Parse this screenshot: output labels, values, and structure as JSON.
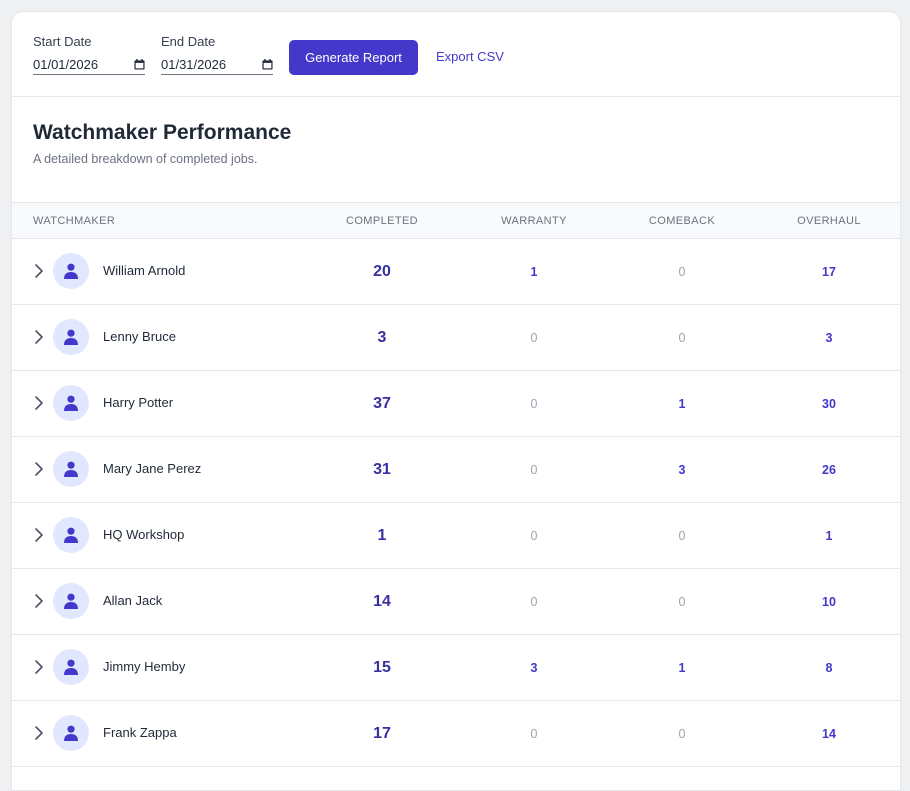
{
  "filters": {
    "start_label": "Start Date",
    "start_value": "01/01/2026",
    "end_label": "End Date",
    "end_value": "01/31/2026",
    "generate_label": "Generate Report",
    "export_label": "Export CSV"
  },
  "header": {
    "title": "Watchmaker Performance",
    "subtitle": "A detailed breakdown of completed jobs."
  },
  "columns": {
    "watchmaker": "WATCHMAKER",
    "completed": "COMPLETED",
    "warranty": "WARRANTY",
    "comeback": "COMEBACK",
    "overhaul": "OVERHAUL"
  },
  "rows": [
    {
      "name": "William Arnold",
      "completed": "20",
      "warranty": "1",
      "comeback": "0",
      "overhaul": "17"
    },
    {
      "name": "Lenny Bruce",
      "completed": "3",
      "warranty": "0",
      "comeback": "0",
      "overhaul": "3"
    },
    {
      "name": "Harry Potter",
      "completed": "37",
      "warranty": "0",
      "comeback": "1",
      "overhaul": "30"
    },
    {
      "name": "Mary Jane Perez",
      "completed": "31",
      "warranty": "0",
      "comeback": "3",
      "overhaul": "26"
    },
    {
      "name": "HQ Workshop",
      "completed": "1",
      "warranty": "0",
      "comeback": "0",
      "overhaul": "1"
    },
    {
      "name": "Allan Jack",
      "completed": "14",
      "warranty": "0",
      "comeback": "0",
      "overhaul": "10"
    },
    {
      "name": "Jimmy Hemby",
      "completed": "15",
      "warranty": "3",
      "comeback": "1",
      "overhaul": "8"
    },
    {
      "name": "Frank Zappa",
      "completed": "17",
      "warranty": "0",
      "comeback": "0",
      "overhaul": "14"
    }
  ],
  "colors": {
    "accent": "#4338ca",
    "avatar_bg": "#e0e7ff",
    "muted": "#9ca3af"
  },
  "icons": {
    "expand": "chevron-right-icon",
    "avatar": "user-icon",
    "date": "calendar-icon"
  }
}
